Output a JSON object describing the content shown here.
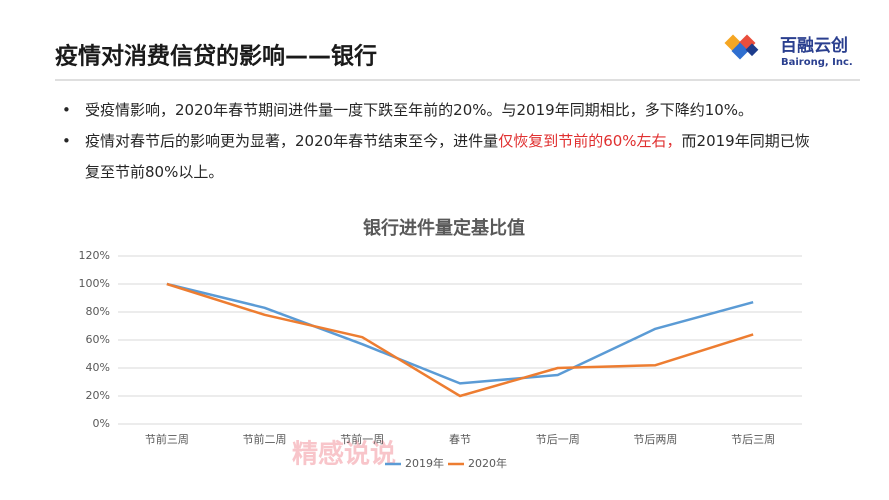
{
  "header": {
    "title": "疫情对消费信贷的影响——银行",
    "logo_name": "百融云创",
    "logo_en": "Bairong, Inc."
  },
  "bullets": [
    [
      {
        "text": "受疫情影响，2020年春节期间进件量一度下跌至年前的20%。与2019年同期相比，多下降约10%。",
        "color": "#262626"
      }
    ],
    [
      {
        "text": "疫情对春节后的影响更为显著，2020年春节结束至今，进件量",
        "color": "#262626"
      },
      {
        "text": "仅恢复到节前的60%左右，",
        "color": "#e03030"
      },
      {
        "text": "而2019年同期已恢复至节前80%以上。",
        "color": "#262626"
      }
    ]
  ],
  "watermark": "精感说说",
  "chart_data": {
    "type": "line",
    "title": "银行进件量定基比值",
    "categories": [
      "节前三周",
      "节前二周",
      "节前一周",
      "春节",
      "节后一周",
      "节后两周",
      "节后三周"
    ],
    "series": [
      {
        "name": "2019年",
        "color": "#5b9bd5",
        "values": [
          100,
          83,
          57,
          29,
          35,
          68,
          87
        ]
      },
      {
        "name": "2020年",
        "color": "#ed7d31",
        "values": [
          100,
          78,
          62,
          20,
          40,
          42,
          64
        ]
      }
    ],
    "ylim": [
      0,
      120
    ],
    "yticks": [
      {
        "value": 0,
        "label": "0%"
      },
      {
        "value": 20,
        "label": "20%"
      },
      {
        "value": 40,
        "label": "40%"
      },
      {
        "value": 60,
        "label": "60%"
      },
      {
        "value": 80,
        "label": "80%"
      },
      {
        "value": 100,
        "label": "100%"
      },
      {
        "value": 120,
        "label": "120%"
      }
    ],
    "grid": true,
    "legend": "bottom"
  }
}
